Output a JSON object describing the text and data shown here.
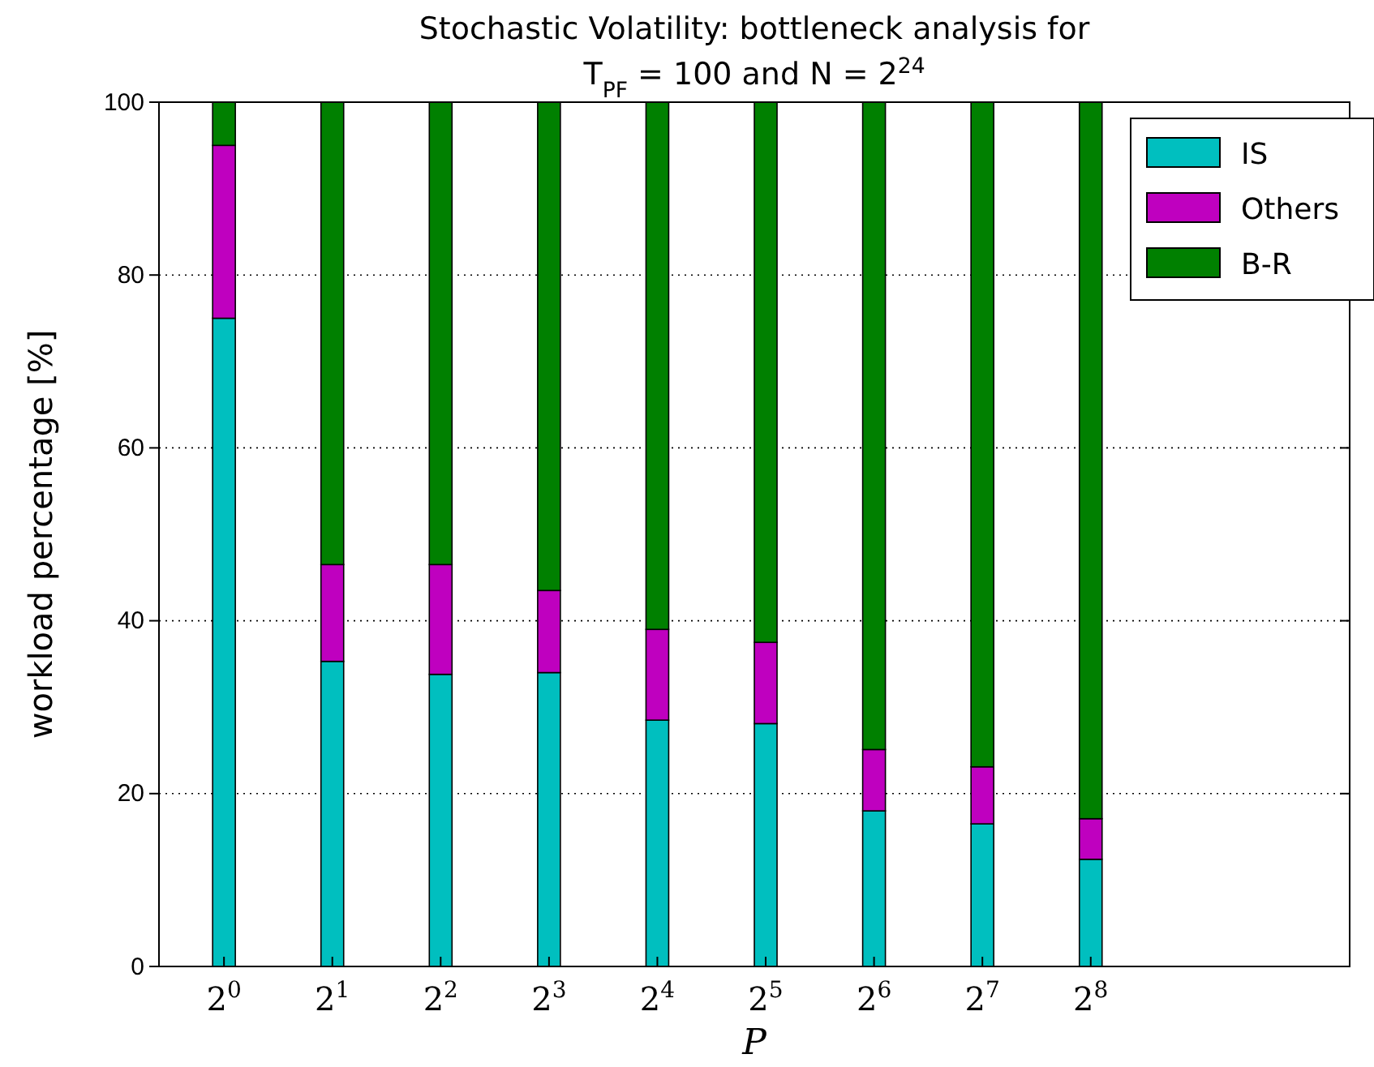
{
  "chart_data": {
    "type": "bar",
    "stacked": true,
    "title": "Stochastic Volatility: bottleneck analysis for",
    "subtitle": "T$_{PF}$ = 100 and N = 2$^{24}$",
    "xlabel": "P",
    "ylabel": "workload percentage [%]",
    "categories": [
      "2$^{0}$",
      "2$^{1}$",
      "2$^{2}$",
      "2$^{3}$",
      "2$^{4}$",
      "2$^{5}$",
      "2$^{6}$",
      "2$^{7}$",
      "2$^{8}$"
    ],
    "series": [
      {
        "name": "IS",
        "color": "#00bfbf",
        "values": [
          75,
          35.3,
          33.8,
          34,
          28.5,
          28.1,
          18,
          16.5,
          12.4
        ]
      },
      {
        "name": "Others",
        "color": "#bf00bf",
        "values": [
          20,
          11.2,
          12.7,
          9.5,
          10.5,
          9.4,
          7.1,
          6.6,
          4.7
        ]
      },
      {
        "name": "B-R",
        "color": "#008000",
        "values": [
          5,
          53.5,
          53.5,
          56.5,
          61,
          62.5,
          74.9,
          76.9,
          82.9
        ]
      }
    ],
    "ylim": [
      0,
      100
    ],
    "yticks": [
      0,
      20,
      40,
      60,
      80,
      100
    ],
    "grid": "y",
    "legend": "top right"
  }
}
